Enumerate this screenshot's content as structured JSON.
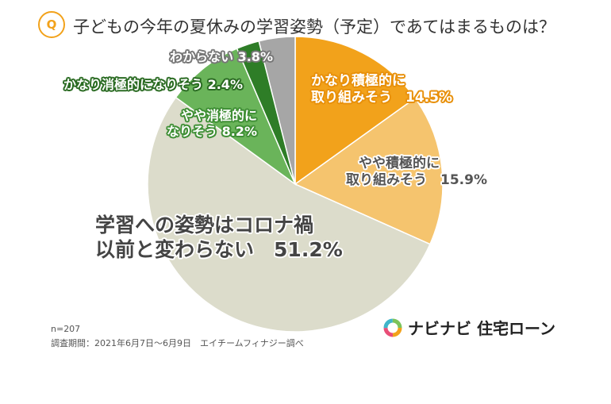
{
  "question": {
    "badge": "Q",
    "title": "子どもの今年の夏休みの学習姿勢（予定）であてはまるものは？"
  },
  "chart_data": {
    "type": "pie",
    "start": "top",
    "direction": "clockwise",
    "slices": [
      {
        "line1": "かなり積極的に",
        "line2": "取り組みそう",
        "pct": "14.5%",
        "value": 14.5,
        "color": "#f2a21b"
      },
      {
        "line1": "やや積極的に",
        "line2": "取り組みそう",
        "pct": "15.9%",
        "value": 15.9,
        "color": "#f5c46e"
      },
      {
        "line1": "学習への姿勢はコロナ禍",
        "line2": "以前と変わらない",
        "pct": "51.2%",
        "value": 51.2,
        "color": "#dcdccb"
      },
      {
        "line1": "やや消極的に",
        "line2": "なりそう",
        "pct": "8.2%",
        "value": 8.2,
        "color": "#6ab45a"
      },
      {
        "line1": "かなり消極的になりそう",
        "line2": "",
        "pct": "2.4%",
        "value": 2.4,
        "color": "#2e7d27"
      },
      {
        "line1": "わからない",
        "line2": "",
        "pct": "3.8%",
        "value": 3.8,
        "color": "#a6a6a6"
      }
    ]
  },
  "footnote": {
    "n": "n=207",
    "period": "調査期間：2021年6月7日～6月9日　エイチームフィナジー調べ"
  },
  "brand": {
    "name": "ナビナビ 住宅ローン",
    "colors": [
      "#f2a21b",
      "#e94e77",
      "#3fb5c9",
      "#7cc35a"
    ]
  }
}
